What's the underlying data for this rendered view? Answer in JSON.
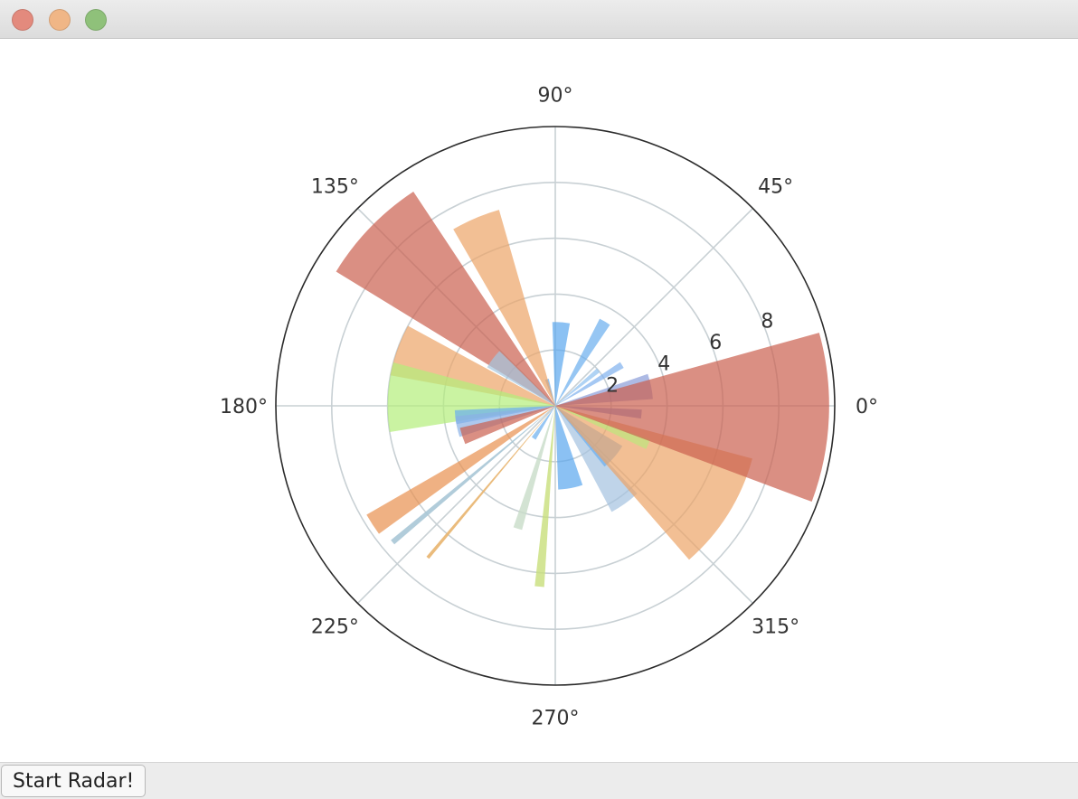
{
  "window": {
    "controls": [
      {
        "name": "close",
        "color": "#e38a7d"
      },
      {
        "name": "minimize",
        "color": "#f0b686"
      },
      {
        "name": "zoom",
        "color": "#8fc17a"
      }
    ]
  },
  "controls": {
    "start_button_label": "Start Radar!"
  },
  "chart_data": {
    "type": "polar-bar",
    "title": "",
    "theta_ticks": [
      "0°",
      "45°",
      "90°",
      "135°",
      "180°",
      "225°",
      "270°",
      "315°"
    ],
    "r_ticks": [
      "2",
      "4",
      "6",
      "8"
    ],
    "r_tick_values": [
      2,
      4,
      6,
      8
    ],
    "rlim": [
      0,
      10
    ],
    "grid": true,
    "bars": [
      {
        "theta_deg": 11.5,
        "width_deg": 15,
        "r": 3.5,
        "color": "#8a9cd8",
        "alpha": 0.7
      },
      {
        "theta_deg": 31.5,
        "width_deg": 5,
        "r": 2.8,
        "color": "#7fb0ee",
        "alpha": 0.7
      },
      {
        "theta_deg": 39.5,
        "width_deg": 5,
        "r": 2.0,
        "color": "#8fc0f0",
        "alpha": 0.7
      },
      {
        "theta_deg": 59.5,
        "width_deg": 7,
        "r": 3.5,
        "color": "#6aaeee",
        "alpha": 0.7
      },
      {
        "theta_deg": 86.0,
        "width_deg": 12,
        "r": 3.0,
        "color": "#5aa6ee",
        "alpha": 0.7
      },
      {
        "theta_deg": 107.5,
        "width_deg": 8,
        "r": 1.0,
        "color": "#6aaeee",
        "alpha": 0.7
      },
      {
        "theta_deg": 113.0,
        "width_deg": 14,
        "r": 7.3,
        "color": "#eca466",
        "alpha": 0.7
      },
      {
        "theta_deg": 136.0,
        "width_deg": 25,
        "r": 9.2,
        "color": "#cb604e",
        "alpha": 0.7
      },
      {
        "theta_deg": 143.0,
        "width_deg": 15,
        "r": 2.8,
        "color": "#a4c6e0",
        "alpha": 0.7
      },
      {
        "theta_deg": 160.5,
        "width_deg": 18,
        "r": 6.0,
        "color": "#eca466",
        "alpha": 0.7
      },
      {
        "theta_deg": 177.0,
        "width_deg": 24,
        "r": 6.0,
        "color": "#b4ee7a",
        "alpha": 0.7
      },
      {
        "theta_deg": 186.5,
        "width_deg": 8,
        "r": 3.6,
        "color": "#6aaeee",
        "alpha": 0.7
      },
      {
        "theta_deg": 192.0,
        "width_deg": 12,
        "r": 3.6,
        "color": "#8ab0e6",
        "alpha": 0.7
      },
      {
        "theta_deg": 198.0,
        "width_deg": 10,
        "r": 3.5,
        "color": "#cb604e",
        "alpha": 0.7
      },
      {
        "theta_deg": 213.0,
        "width_deg": 6,
        "r": 7.8,
        "color": "#e8904e",
        "alpha": 0.7
      },
      {
        "theta_deg": 220.0,
        "width_deg": 1.5,
        "r": 7.6,
        "color": "#a9c6d6",
        "alpha": 0.9
      },
      {
        "theta_deg": 230.0,
        "width_deg": 1.0,
        "r": 7.1,
        "color": "#e8b46e",
        "alpha": 0.9
      },
      {
        "theta_deg": 236.5,
        "width_deg": 7,
        "r": 1.4,
        "color": "#6aaeee",
        "alpha": 0.7
      },
      {
        "theta_deg": 253.0,
        "width_deg": 4,
        "r": 4.6,
        "color": "#c8dcc8",
        "alpha": 0.8
      },
      {
        "theta_deg": 265.0,
        "width_deg": 3,
        "r": 6.5,
        "color": "#c8de7a",
        "alpha": 0.8
      },
      {
        "theta_deg": 280.5,
        "width_deg": 17,
        "r": 3.0,
        "color": "#5aa6ee",
        "alpha": 0.7
      },
      {
        "theta_deg": 305.5,
        "width_deg": 15,
        "r": 4.3,
        "color": "#a4c2e0",
        "alpha": 0.7
      },
      {
        "theta_deg": 319.0,
        "width_deg": 20,
        "r": 2.8,
        "color": "#6aaeee",
        "alpha": 0.7
      },
      {
        "theta_deg": 328.0,
        "width_deg": 34,
        "r": 7.3,
        "color": "#eca466",
        "alpha": 0.7
      },
      {
        "theta_deg": 337.5,
        "width_deg": 6,
        "r": 3.6,
        "color": "#b4ee7a",
        "alpha": 0.6
      },
      {
        "theta_deg": 354.5,
        "width_deg": 6,
        "r": 3.1,
        "color": "#8a9cd8",
        "alpha": 0.8
      },
      {
        "theta_deg": 357.5,
        "width_deg": 36,
        "r": 9.8,
        "color": "#cb604e",
        "alpha": 0.7
      }
    ]
  }
}
